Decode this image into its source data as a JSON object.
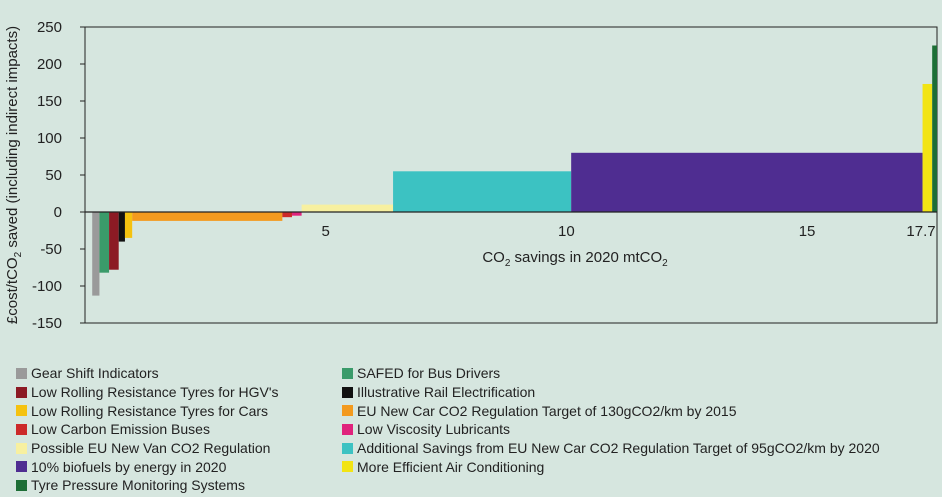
{
  "chart_data": {
    "type": "bar",
    "variant": "marginal-abatement-cost-curve",
    "title": "",
    "xlabel": "CO2 savings in 2020 mtCO2",
    "xlabel_parts": {
      "a": "CO",
      "sub1": "2",
      "b": " savings in 2020 mtCO",
      "sub2": "2"
    },
    "ylabel": "£cost/tCO2 saved (including indirect impacts)",
    "ylabel_parts": {
      "a": "£cost/tCO",
      "sub": "2",
      "b": " saved (including indirect impacts)"
    },
    "ylim": [
      -150,
      250
    ],
    "xlim": [
      0,
      17.7
    ],
    "y_ticks": [
      "250",
      "200",
      "150",
      "100",
      "50",
      "0",
      "-50",
      "-100",
      "-150"
    ],
    "x_ticks": [
      "5",
      "10",
      "15",
      "17.7"
    ],
    "legend_position": "bottom",
    "series": [
      {
        "name": "Gear Shift Indicators",
        "color": "#9a9a9a",
        "x_start": 0.15,
        "x_end": 0.3,
        "value": -113
      },
      {
        "name": "SAFED for Bus Drivers",
        "color": "#3a9b6a",
        "x_start": 0.3,
        "x_end": 0.5,
        "value": -82
      },
      {
        "name": "Low Rolling Resistance Tyres for HGV's",
        "color": "#8c1a24",
        "x_start": 0.5,
        "x_end": 0.7,
        "value": -78
      },
      {
        "name": "Illustrative Rail Electrification",
        "color": "#111111",
        "x_start": 0.7,
        "x_end": 0.83,
        "value": -40
      },
      {
        "name": "Low Rolling Resistance Tyres for Cars",
        "color": "#f5c20f",
        "x_start": 0.83,
        "x_end": 0.98,
        "value": -35
      },
      {
        "name": "EU New Car CO2 Regulation Target of 130gCO2/km by 2015",
        "color": "#f39a1e",
        "x_start": 0.98,
        "x_end": 4.1,
        "value": -12
      },
      {
        "name": "Low Carbon Emission Buses",
        "color": "#cc2929",
        "x_start": 4.1,
        "x_end": 4.3,
        "value": -7
      },
      {
        "name": "Low Viscosity Lubricants",
        "color": "#e0237c",
        "x_start": 4.3,
        "x_end": 4.5,
        "value": -5
      },
      {
        "name": "Possible EU New Van CO2 Regulation",
        "color": "#f7f0a0",
        "x_start": 4.5,
        "x_end": 6.4,
        "value": 10
      },
      {
        "name": "Additional Savings from EU New Car CO2 Regulation Target of 95gCO2/km by 2020",
        "color": "#3cc2c2",
        "x_start": 6.4,
        "x_end": 10.1,
        "value": 55
      },
      {
        "name": "10% biofuels by energy in 2020",
        "color": "#4f2d91",
        "x_start": 10.1,
        "x_end": 17.4,
        "value": 80
      },
      {
        "name": "More Efficient Air Conditioning",
        "color": "#f2e414",
        "x_start": 17.4,
        "x_end": 17.6,
        "value": 173
      },
      {
        "name": "Tyre Pressure Monitoring Systems",
        "color": "#1d6e36",
        "x_start": 17.6,
        "x_end": 17.7,
        "value": 225
      }
    ]
  },
  "legend": {
    "left": [
      {
        "label": "Gear Shift Indicators",
        "color": "#9a9a9a"
      },
      {
        "label": "Low Rolling Resistance Tyres for HGV's",
        "color": "#8c1a24"
      },
      {
        "label": "Low Rolling Resistance Tyres for Cars",
        "color": "#f5c20f"
      },
      {
        "label": "Low Carbon Emission Buses",
        "color": "#cc2929"
      },
      {
        "label": "Possible EU New Van CO2 Regulation",
        "color": "#f7f0a0"
      },
      {
        "label": "10% biofuels by energy in 2020",
        "color": "#4f2d91"
      },
      {
        "label": "Tyre Pressure Monitoring Systems",
        "color": "#1d6e36"
      }
    ],
    "right": [
      {
        "label": "SAFED for Bus Drivers",
        "color": "#3a9b6a"
      },
      {
        "label": "Illustrative Rail Electrification",
        "color": "#111111"
      },
      {
        "label": "EU New Car CO2 Regulation Target of 130gCO2/km by 2015",
        "color": "#f39a1e"
      },
      {
        "label": "Low Viscosity Lubricants",
        "color": "#e0237c"
      },
      {
        "label": "Additional Savings from EU New Car CO2 Regulation Target of 95gCO2/km by 2020",
        "color": "#3cc2c2"
      },
      {
        "label": "More Efficient Air Conditioning",
        "color": "#f2e414"
      }
    ]
  }
}
